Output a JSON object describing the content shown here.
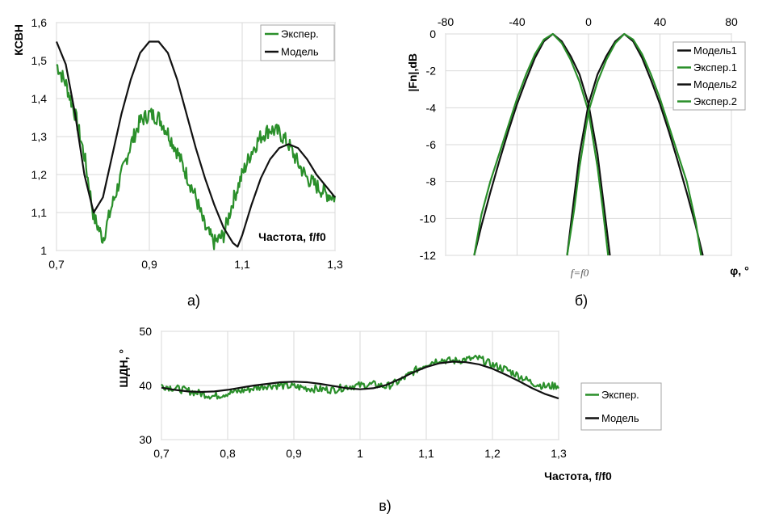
{
  "colors": {
    "model": "#111111",
    "experiment": "#2a8f2a",
    "grid": "#d9d9d9",
    "frame": "#a6a6a6"
  },
  "chart_data": [
    {
      "type": "line",
      "caption": "а)",
      "ylabel": "КСВН",
      "xlabel": "Частота, f/f0",
      "xlim": [
        0.7,
        1.3
      ],
      "ylim": [
        1.0,
        1.6
      ],
      "x_ticks": [
        "0,7",
        "0,9",
        "1,1",
        "1,3"
      ],
      "x_tick_values": [
        0.7,
        0.9,
        1.1,
        1.3
      ],
      "y_ticks": [
        "1",
        "1,1",
        "1,2",
        "1,3",
        "1,4",
        "1,5",
        "1,6"
      ],
      "y_tick_values": [
        1.0,
        1.1,
        1.2,
        1.3,
        1.4,
        1.5,
        1.6
      ],
      "grid": true,
      "legend_position": "top-right",
      "series": [
        {
          "name": "Экспер.",
          "color_key": "experiment",
          "noisy": true,
          "x": [
            0.7,
            0.72,
            0.74,
            0.76,
            0.78,
            0.8,
            0.82,
            0.84,
            0.86,
            0.88,
            0.9,
            0.92,
            0.94,
            0.96,
            0.98,
            1.0,
            1.02,
            1.04,
            1.06,
            1.08,
            1.1,
            1.12,
            1.14,
            1.16,
            1.18,
            1.2,
            1.22,
            1.24,
            1.26,
            1.28,
            1.3
          ],
          "y": [
            1.49,
            1.44,
            1.36,
            1.25,
            1.09,
            1.03,
            1.12,
            1.2,
            1.28,
            1.34,
            1.36,
            1.35,
            1.31,
            1.26,
            1.2,
            1.14,
            1.06,
            1.02,
            1.04,
            1.13,
            1.2,
            1.26,
            1.3,
            1.32,
            1.31,
            1.28,
            1.23,
            1.19,
            1.17,
            1.15,
            1.14
          ]
        },
        {
          "name": "Модель",
          "color_key": "model",
          "noisy": false,
          "x": [
            0.7,
            0.72,
            0.74,
            0.76,
            0.78,
            0.8,
            0.82,
            0.84,
            0.86,
            0.88,
            0.9,
            0.92,
            0.94,
            0.96,
            0.98,
            1.0,
            1.02,
            1.04,
            1.06,
            1.08,
            1.09,
            1.1,
            1.12,
            1.14,
            1.16,
            1.18,
            1.2,
            1.22,
            1.24,
            1.26,
            1.28,
            1.3
          ],
          "y": [
            1.55,
            1.49,
            1.36,
            1.2,
            1.1,
            1.14,
            1.25,
            1.36,
            1.45,
            1.52,
            1.55,
            1.55,
            1.52,
            1.45,
            1.36,
            1.27,
            1.19,
            1.12,
            1.06,
            1.02,
            1.01,
            1.04,
            1.12,
            1.19,
            1.24,
            1.27,
            1.28,
            1.27,
            1.24,
            1.2,
            1.17,
            1.14
          ]
        }
      ]
    },
    {
      "type": "line",
      "caption": "б)",
      "ylabel": "|Fn|,dB",
      "xlabel": "φ, °",
      "annotation": "f=f0",
      "xlim": [
        -80,
        80
      ],
      "ylim": [
        -12,
        0
      ],
      "x_ticks": [
        "-80",
        "-40",
        "0",
        "40",
        "80"
      ],
      "x_tick_values": [
        -80,
        -40,
        0,
        40,
        80
      ],
      "x_axis_position": "top",
      "y_ticks": [
        "0",
        "-2",
        "-4",
        "-6",
        "-8",
        "-10",
        "-12"
      ],
      "y_tick_values": [
        0,
        -2,
        -4,
        -6,
        -8,
        -10,
        -12
      ],
      "grid": true,
      "legend_position": "top-right",
      "series": [
        {
          "name": "Модель1",
          "color_key": "model",
          "noisy": false,
          "x": [
            -64,
            -60,
            -55,
            -50,
            -45,
            -40,
            -35,
            -30,
            -25,
            -20,
            -15,
            -10,
            -5,
            0,
            5,
            10,
            12
          ],
          "y": [
            -12,
            -10.4,
            -8.6,
            -6.9,
            -5.3,
            -3.8,
            -2.5,
            -1.3,
            -0.4,
            0,
            -0.4,
            -1.2,
            -2.2,
            -3.8,
            -6.5,
            -10.4,
            -12
          ]
        },
        {
          "name": "Экспер.1",
          "color_key": "experiment",
          "noisy": false,
          "x": [
            -64,
            -60,
            -55,
            -50,
            -45,
            -40,
            -35,
            -30,
            -25,
            -20,
            -15,
            -10,
            -5,
            0,
            5,
            8,
            11
          ],
          "y": [
            -12,
            -9.8,
            -8.0,
            -6.5,
            -5.0,
            -3.5,
            -2.2,
            -1.1,
            -0.3,
            0,
            -0.5,
            -1.4,
            -2.6,
            -4.2,
            -7.2,
            -9.5,
            -12
          ]
        },
        {
          "name": "Модель2",
          "color_key": "model",
          "noisy": false,
          "x": [
            -12,
            -10,
            -5,
            0,
            5,
            10,
            15,
            20,
            25,
            30,
            35,
            40,
            45,
            50,
            55,
            60,
            64
          ],
          "y": [
            -12,
            -10.4,
            -6.5,
            -3.8,
            -2.2,
            -1.2,
            -0.4,
            0,
            -0.4,
            -1.3,
            -2.5,
            -3.8,
            -5.3,
            -6.9,
            -8.6,
            -10.4,
            -12
          ]
        },
        {
          "name": "Экспер.2",
          "color_key": "experiment",
          "noisy": false,
          "x": [
            -12,
            -8,
            -5,
            0,
            5,
            10,
            15,
            20,
            25,
            30,
            35,
            40,
            45,
            50,
            55,
            60,
            63
          ],
          "y": [
            -12,
            -9.5,
            -7.2,
            -4.2,
            -2.6,
            -1.4,
            -0.5,
            0,
            -0.3,
            -1.1,
            -2.2,
            -3.5,
            -5.0,
            -6.5,
            -8.0,
            -10.2,
            -12
          ]
        }
      ]
    },
    {
      "type": "line",
      "caption": "в)",
      "ylabel": "ШДН, °",
      "xlabel": "Частота, f/f0",
      "xlim": [
        0.7,
        1.3
      ],
      "ylim": [
        30,
        50
      ],
      "x_ticks": [
        "0,7",
        "0,8",
        "0,9",
        "1",
        "1,1",
        "1,2",
        "1,3"
      ],
      "x_tick_values": [
        0.7,
        0.8,
        0.9,
        1.0,
        1.1,
        1.2,
        1.3
      ],
      "y_ticks": [
        "30",
        "40",
        "50"
      ],
      "y_tick_values": [
        30,
        40,
        50
      ],
      "grid": true,
      "legend_position": "right",
      "series": [
        {
          "name": "Экспер.",
          "color_key": "experiment",
          "noisy": true,
          "x": [
            0.7,
            0.72,
            0.74,
            0.76,
            0.78,
            0.8,
            0.82,
            0.84,
            0.86,
            0.88,
            0.9,
            0.92,
            0.94,
            0.96,
            0.98,
            1.0,
            1.02,
            1.04,
            1.06,
            1.08,
            1.1,
            1.12,
            1.14,
            1.16,
            1.18,
            1.2,
            1.22,
            1.24,
            1.26,
            1.28,
            1.3
          ],
          "y": [
            40,
            39.5,
            39,
            38.5,
            38,
            38.6,
            39,
            39.5,
            40,
            40,
            39.8,
            39.5,
            39.3,
            39.2,
            39.8,
            40,
            40.2,
            39.8,
            40.8,
            42.5,
            44,
            44.8,
            44.5,
            44.8,
            45,
            43.8,
            43,
            41.8,
            40.5,
            39.8,
            40
          ]
        },
        {
          "name": "Модель",
          "color_key": "model",
          "noisy": false,
          "x": [
            0.7,
            0.72,
            0.74,
            0.76,
            0.78,
            0.8,
            0.82,
            0.84,
            0.86,
            0.88,
            0.9,
            0.92,
            0.94,
            0.96,
            0.98,
            1.0,
            1.02,
            1.04,
            1.06,
            1.08,
            1.1,
            1.12,
            1.14,
            1.16,
            1.18,
            1.2,
            1.22,
            1.24,
            1.26,
            1.28,
            1.3
          ],
          "y": [
            39.6,
            39.2,
            38.9,
            38.8,
            38.9,
            39.2,
            39.6,
            40,
            40.3,
            40.6,
            40.7,
            40.6,
            40.3,
            39.9,
            39.5,
            39.3,
            39.5,
            40.1,
            41.2,
            42.4,
            43.4,
            44.1,
            44.4,
            44.3,
            43.9,
            43.1,
            42.0,
            40.8,
            39.5,
            38.4,
            37.6
          ]
        }
      ]
    }
  ]
}
